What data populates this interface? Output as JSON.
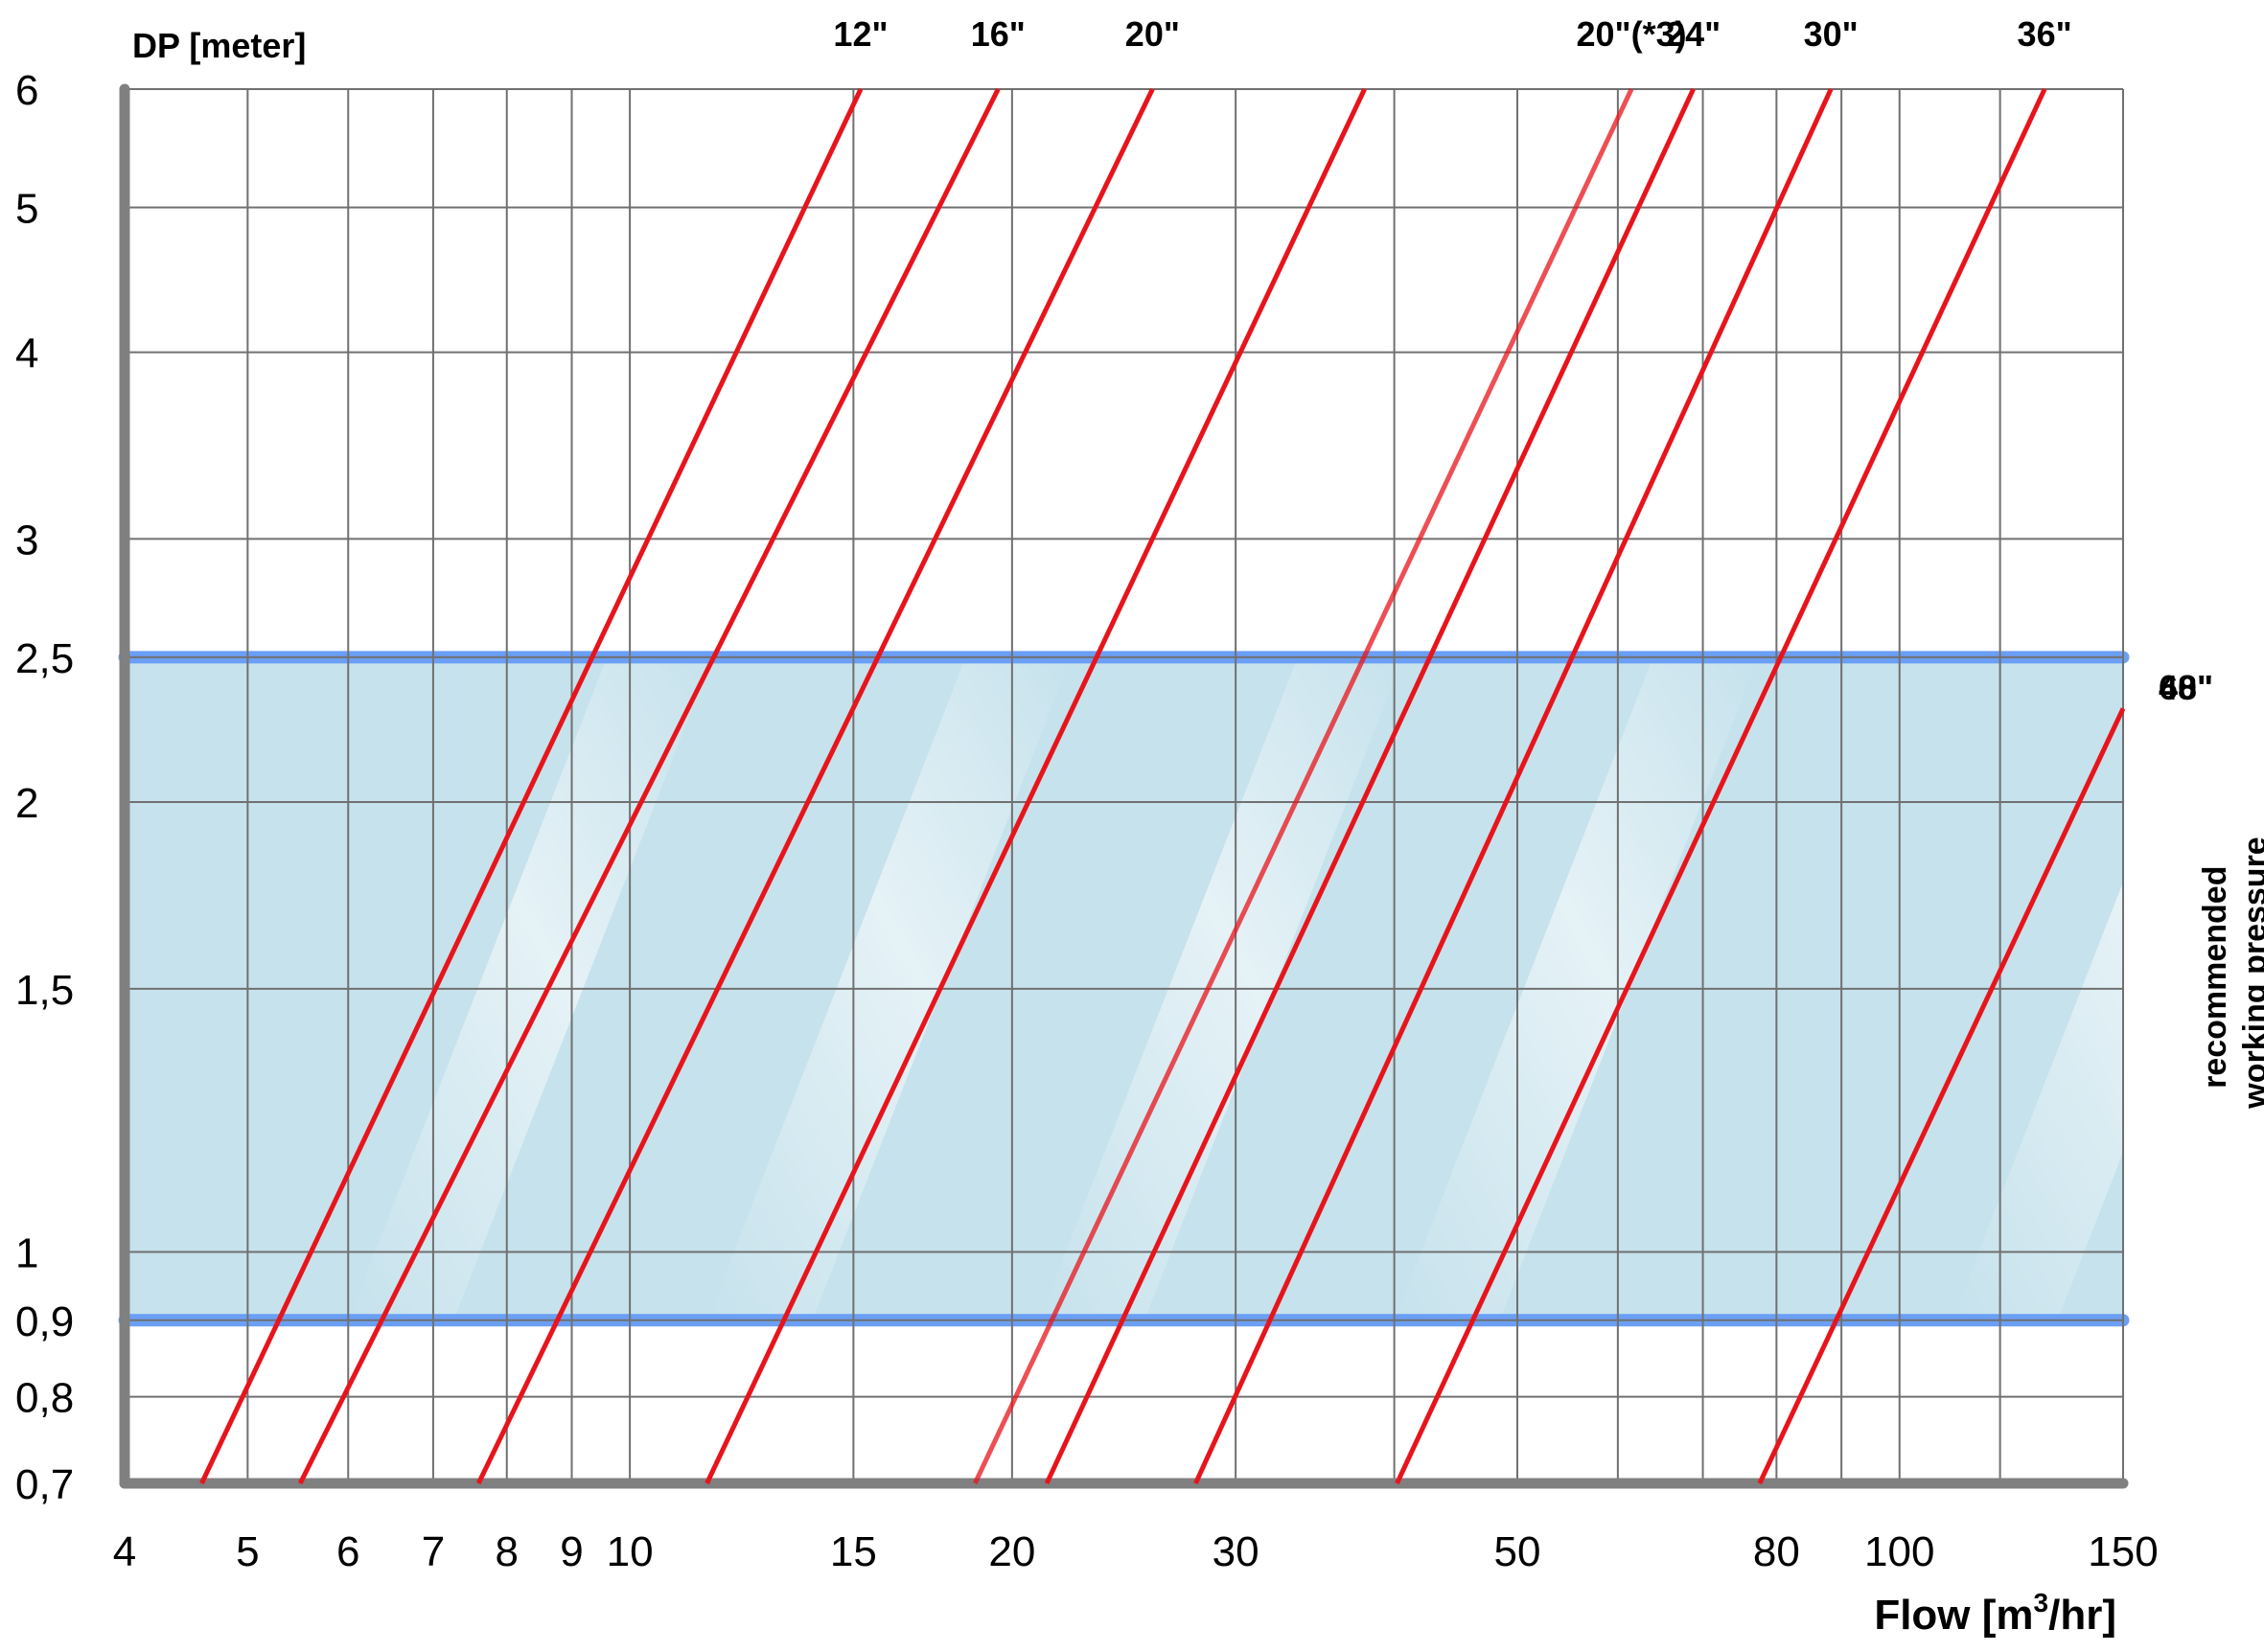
{
  "chart_data": {
    "type": "line",
    "title": "",
    "ylabel": "DP [meter]",
    "xlabel": "Flow [m",
    "xlabel_sup": "3",
    "xlabel_tail": "/hr]",
    "x_scale": "log",
    "y_scale": "log",
    "xlim": [
      4,
      150
    ],
    "ylim": [
      0.7,
      6
    ],
    "x_ticks": [
      {
        "value": 4,
        "label": "4"
      },
      {
        "value": 5,
        "label": "5"
      },
      {
        "value": 6,
        "label": "6"
      },
      {
        "value": 7,
        "label": "7"
      },
      {
        "value": 8,
        "label": "8"
      },
      {
        "value": 9,
        "label": "9"
      },
      {
        "value": 10,
        "label": "10"
      },
      {
        "value": 15,
        "label": "15"
      },
      {
        "value": 20,
        "label": "20"
      },
      {
        "value": 30,
        "label": "30"
      },
      {
        "value": 50,
        "label": "50"
      },
      {
        "value": 80,
        "label": "80"
      },
      {
        "value": 100,
        "label": "100"
      },
      {
        "value": 150,
        "label": "150"
      }
    ],
    "x_grid": [
      4,
      5,
      6,
      7,
      8,
      9,
      10,
      15,
      20,
      30,
      40,
      50,
      60,
      70,
      80,
      90,
      100,
      120,
      150
    ],
    "y_ticks": [
      {
        "value": 0.7,
        "label": "0,7"
      },
      {
        "value": 0.8,
        "label": "0,8"
      },
      {
        "value": 0.9,
        "label": "0,9"
      },
      {
        "value": 1,
        "label": "1"
      },
      {
        "value": 1.5,
        "label": "1,5"
      },
      {
        "value": 2,
        "label": "2"
      },
      {
        "value": 2.5,
        "label": "2,5"
      },
      {
        "value": 3,
        "label": "3"
      },
      {
        "value": 4,
        "label": "4"
      },
      {
        "value": 5,
        "label": "5"
      },
      {
        "value": 6,
        "label": "6"
      }
    ],
    "grid": true,
    "band": {
      "y_min": 0.9,
      "y_max": 2.5,
      "label_line1": "recommended",
      "label_line2": "working pressure"
    },
    "series": [
      {
        "name": "12\"",
        "x": [
          4.6,
          15.2
        ],
        "y": [
          0.7,
          6
        ]
      },
      {
        "name": "16\"",
        "x": [
          5.5,
          19.5
        ],
        "y": [
          0.7,
          6
        ]
      },
      {
        "name": "20\"",
        "x": [
          7.6,
          25.8
        ],
        "y": [
          0.7,
          6
        ]
      },
      {
        "name": "",
        "x": [
          11.5,
          37.9
        ],
        "y": [
          0.7,
          6
        ]
      },
      {
        "name": "20\"(*3)",
        "x": [
          18.7,
          61.5
        ],
        "y": [
          0.7,
          6
        ]
      },
      {
        "name": "24\"",
        "x": [
          21.3,
          68.8
        ],
        "y": [
          0.7,
          6
        ]
      },
      {
        "name": "30\"",
        "x": [
          27.9,
          88.3
        ],
        "y": [
          0.7,
          6
        ]
      },
      {
        "name": "36\"",
        "x": [
          40.2,
          130.1
        ],
        "y": [
          0.7,
          6
        ]
      },
      {
        "name": "48\"",
        "x": [
          77.6,
          150
        ],
        "y": [
          0.7,
          2.31
        ]
      },
      {
        "name": "60\"",
        "x": [],
        "y": []
      }
    ],
    "colors": {
      "line": "#e8141b",
      "band": "#c6e2ec",
      "band_edge": "#6b9ff5",
      "grid": "#707070",
      "axis": "#808080"
    }
  }
}
